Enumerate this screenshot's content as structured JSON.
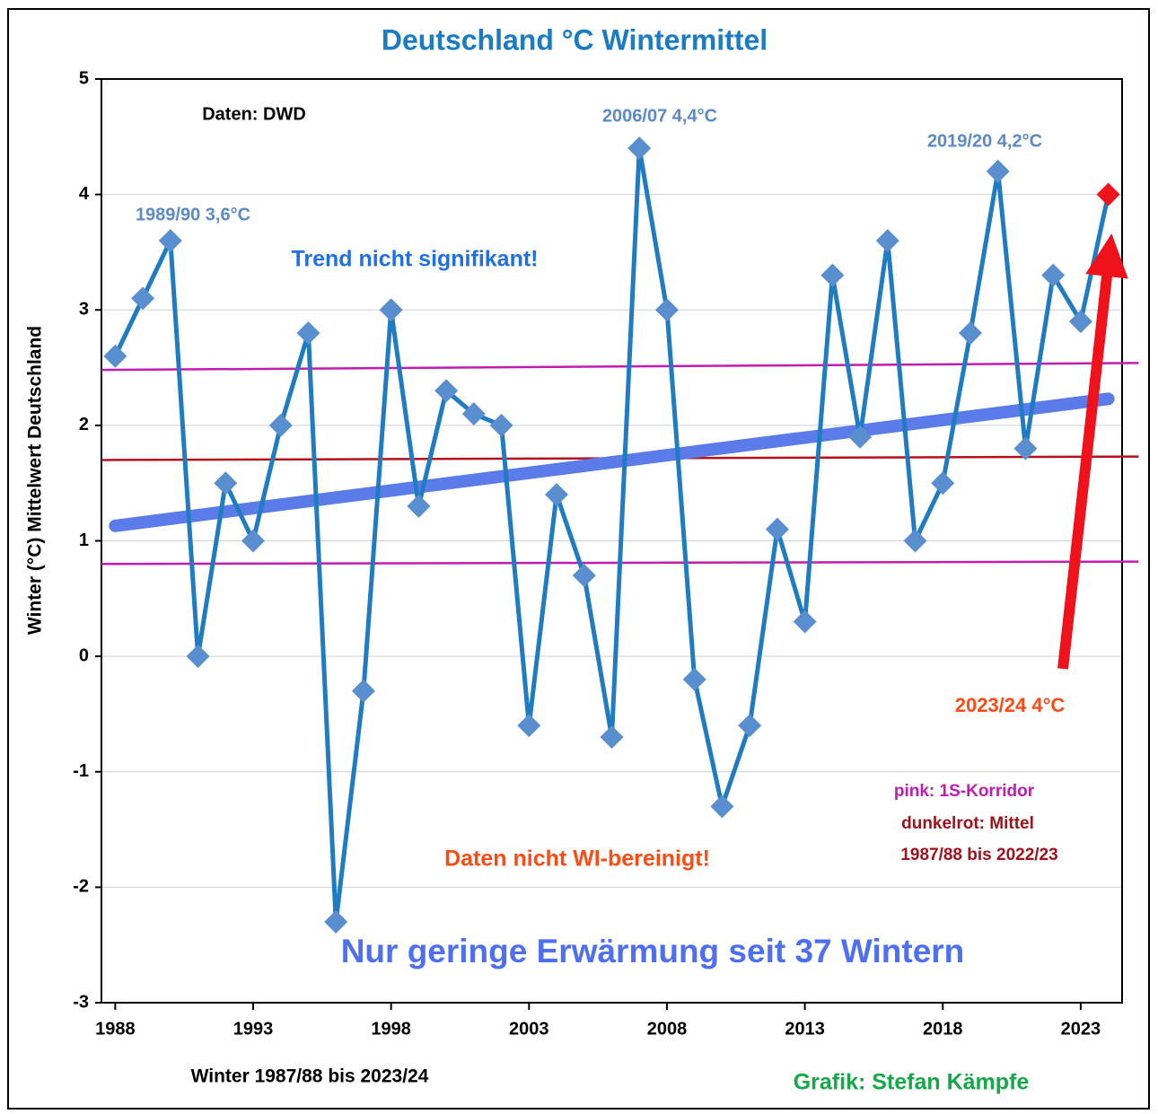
{
  "chart_data": {
    "type": "line",
    "title": "Deutschland °C Wintermittel",
    "title_color": "#1a7cc4",
    "y_label": "Winter (°C) Mittelwert Deutschland",
    "x_label": "Winter 1987/88 bis 2023/24",
    "credit": "Grafik: Stefan Kämpfe",
    "credit_color": "#15a748",
    "x": [
      1988,
      1989,
      1990,
      1991,
      1992,
      1993,
      1994,
      1995,
      1996,
      1997,
      1998,
      1999,
      2000,
      2001,
      2002,
      2003,
      2004,
      2005,
      2006,
      2007,
      2008,
      2009,
      2010,
      2011,
      2012,
      2013,
      2014,
      2015,
      2016,
      2017,
      2018,
      2019,
      2020,
      2021,
      2022,
      2023,
      2024
    ],
    "series": [
      {
        "color": "#1f7cc2",
        "marker_color": "#5a8fcf",
        "last_point_color": "#f0121b",
        "values": [
          2.6,
          3.1,
          3.6,
          0.0,
          1.5,
          1.0,
          2.0,
          2.8,
          -2.3,
          -0.3,
          3.0,
          1.3,
          2.3,
          2.1,
          2.0,
          -0.6,
          1.4,
          0.7,
          -0.7,
          4.4,
          3.0,
          -0.2,
          -1.3,
          -0.6,
          1.1,
          0.3,
          3.3,
          1.9,
          3.6,
          1.0,
          1.5,
          2.8,
          4.2,
          1.8,
          3.3,
          2.9,
          4.0
        ]
      }
    ],
    "trend": {
      "x": [
        1988,
        2024
      ],
      "values": [
        1.13,
        2.23
      ],
      "color": "#5b7be8"
    },
    "reference_lines": [
      {
        "x": [
          1987.5,
          2025.1
        ],
        "values": [
          2.48,
          2.54
        ],
        "color": "#c11cb0"
      },
      {
        "x": [
          1987.5,
          2025.1
        ],
        "values": [
          1.7,
          1.73
        ],
        "color": "#b3121c"
      },
      {
        "x": [
          1987.5,
          2025.1
        ],
        "values": [
          0.8,
          0.82
        ],
        "color": "#c11cb0"
      }
    ],
    "annotations": [
      {
        "text": "Daten: DWD",
        "color": "#000000"
      },
      {
        "text": "1989/90  3,6°C",
        "color": "#5a8ac8"
      },
      {
        "text": "2006/07  4,4°C",
        "color": "#5a8ac8"
      },
      {
        "text": "2019/20  4,2°C",
        "color": "#5a8ac8"
      },
      {
        "text": "Trend nicht signifikant!",
        "color": "#1f6fe6"
      },
      {
        "text": "2023/24  4°C",
        "color": "#ff4a14"
      },
      {
        "text": "pink: 1S-Korridor",
        "color": "#c11cb0"
      },
      {
        "text": "dunkelrot: Mittel",
        "color": "#a3101a"
      },
      {
        "text": "1987/88 bis 2022/23",
        "color": "#a3101a"
      },
      {
        "text": "Daten nicht WI-bereinigt!",
        "color": "#ff4a14"
      },
      {
        "text": "Nur geringe Erwärmung seit 37 Wintern",
        "color": "#4e6ff0"
      }
    ],
    "xlim": [
      1987.5,
      2024.5
    ],
    "ylim": [
      -3,
      5
    ],
    "xticks": [
      1988,
      1993,
      1998,
      2003,
      2008,
      2013,
      2018,
      2023
    ],
    "yticks": [
      -3,
      -2,
      -1,
      0,
      1,
      2,
      3,
      4,
      5
    ],
    "grid": true
  }
}
